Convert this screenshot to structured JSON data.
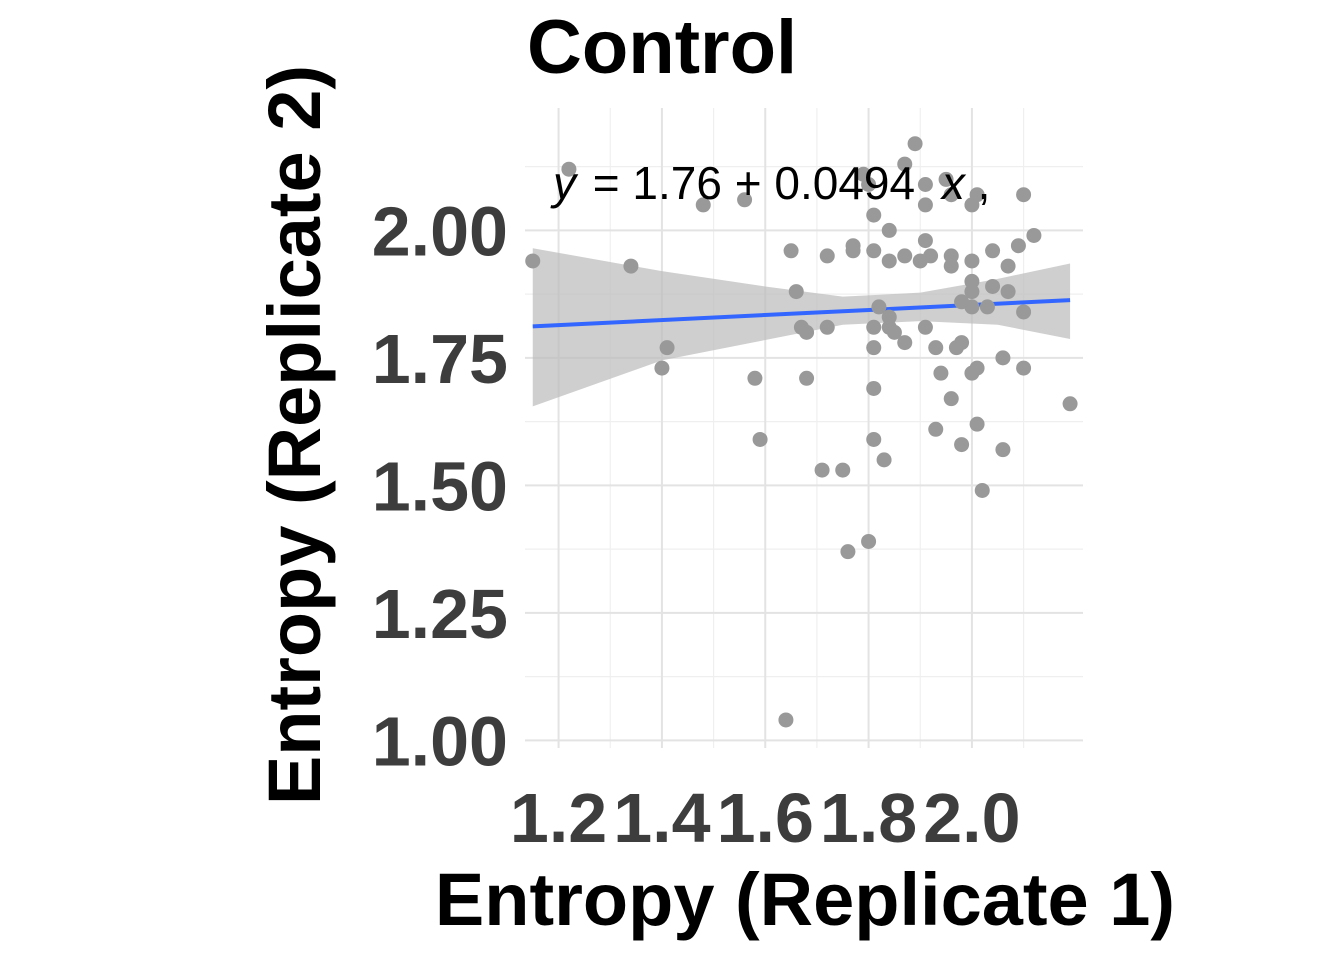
{
  "chart_data": {
    "type": "scatter",
    "title": "Control",
    "xlabel": "Entropy (Replicate 1)",
    "ylabel": "Entropy (Replicate 2)",
    "xlim": [
      1.135,
      2.215
    ],
    "ylim": [
      0.985,
      2.24
    ],
    "x_ticks": [
      "1.2",
      "1.4",
      "1.6",
      "1.8",
      "2.0"
    ],
    "y_ticks": [
      "1.00",
      "1.25",
      "1.50",
      "1.75",
      "2.00"
    ],
    "grid": true,
    "equation": {
      "y": "y",
      "rest": "= 1.76 + 0.0494",
      "x": "x",
      "tail": ","
    },
    "fit": {
      "intercept": 1.755,
      "slope": 0.0494,
      "x_range": [
        1.15,
        2.19
      ],
      "band": [
        {
          "x": 1.15,
          "lo": 1.655,
          "hi": 1.965
        },
        {
          "x": 1.4,
          "lo": 1.745,
          "hi": 1.92
        },
        {
          "x": 1.6,
          "lo": 1.785,
          "hi": 1.89
        },
        {
          "x": 1.75,
          "lo": 1.815,
          "hi": 1.87
        },
        {
          "x": 1.9,
          "lo": 1.822,
          "hi": 1.878
        },
        {
          "x": 2.05,
          "lo": 1.815,
          "hi": 1.905
        },
        {
          "x": 2.19,
          "lo": 1.787,
          "hi": 1.935
        }
      ],
      "line_color": "#3366ff",
      "band_color": "#bdbdbd"
    },
    "point_color": "#999999",
    "points": [
      {
        "x": 1.15,
        "y": 1.94
      },
      {
        "x": 1.22,
        "y": 2.12
      },
      {
        "x": 1.34,
        "y": 1.93
      },
      {
        "x": 1.41,
        "y": 1.77
      },
      {
        "x": 1.4,
        "y": 1.73
      },
      {
        "x": 1.48,
        "y": 2.05
      },
      {
        "x": 1.56,
        "y": 2.06
      },
      {
        "x": 1.58,
        "y": 1.71
      },
      {
        "x": 1.59,
        "y": 1.59
      },
      {
        "x": 1.64,
        "y": 1.04
      },
      {
        "x": 1.65,
        "y": 1.96
      },
      {
        "x": 1.66,
        "y": 1.88
      },
      {
        "x": 1.67,
        "y": 1.81
      },
      {
        "x": 1.68,
        "y": 1.8
      },
      {
        "x": 1.68,
        "y": 1.71
      },
      {
        "x": 1.71,
        "y": 1.53
      },
      {
        "x": 1.72,
        "y": 1.81
      },
      {
        "x": 1.72,
        "y": 1.95
      },
      {
        "x": 1.75,
        "y": 1.53
      },
      {
        "x": 1.76,
        "y": 1.37
      },
      {
        "x": 1.77,
        "y": 1.97
      },
      {
        "x": 1.77,
        "y": 1.96
      },
      {
        "x": 1.79,
        "y": 2.11
      },
      {
        "x": 1.8,
        "y": 2.09
      },
      {
        "x": 1.8,
        "y": 1.39
      },
      {
        "x": 1.81,
        "y": 2.03
      },
      {
        "x": 1.81,
        "y": 1.96
      },
      {
        "x": 1.81,
        "y": 1.81
      },
      {
        "x": 1.81,
        "y": 1.77
      },
      {
        "x": 1.81,
        "y": 1.69
      },
      {
        "x": 1.81,
        "y": 1.59
      },
      {
        "x": 1.82,
        "y": 1.85
      },
      {
        "x": 1.83,
        "y": 1.55
      },
      {
        "x": 1.84,
        "y": 2.0
      },
      {
        "x": 1.84,
        "y": 1.94
      },
      {
        "x": 1.84,
        "y": 1.81
      },
      {
        "x": 1.84,
        "y": 1.83
      },
      {
        "x": 1.85,
        "y": 1.8
      },
      {
        "x": 1.87,
        "y": 2.13
      },
      {
        "x": 1.87,
        "y": 1.95
      },
      {
        "x": 1.87,
        "y": 1.78
      },
      {
        "x": 1.89,
        "y": 2.17
      },
      {
        "x": 1.91,
        "y": 2.05
      },
      {
        "x": 1.91,
        "y": 1.98
      },
      {
        "x": 1.91,
        "y": 1.81
      },
      {
        "x": 1.91,
        "y": 2.09
      },
      {
        "x": 1.9,
        "y": 1.94
      },
      {
        "x": 1.92,
        "y": 1.95
      },
      {
        "x": 1.93,
        "y": 1.61
      },
      {
        "x": 1.93,
        "y": 1.77
      },
      {
        "x": 1.94,
        "y": 1.72
      },
      {
        "x": 1.95,
        "y": 2.1
      },
      {
        "x": 1.96,
        "y": 2.07
      },
      {
        "x": 1.96,
        "y": 1.95
      },
      {
        "x": 1.96,
        "y": 1.93
      },
      {
        "x": 1.96,
        "y": 1.67
      },
      {
        "x": 1.97,
        "y": 1.77
      },
      {
        "x": 1.98,
        "y": 1.86
      },
      {
        "x": 1.98,
        "y": 1.78
      },
      {
        "x": 1.98,
        "y": 1.58
      },
      {
        "x": 2.0,
        "y": 2.05
      },
      {
        "x": 2.0,
        "y": 1.94
      },
      {
        "x": 2.0,
        "y": 1.9
      },
      {
        "x": 2.0,
        "y": 1.88
      },
      {
        "x": 2.0,
        "y": 1.85
      },
      {
        "x": 2.0,
        "y": 1.72
      },
      {
        "x": 2.01,
        "y": 2.07
      },
      {
        "x": 2.01,
        "y": 1.62
      },
      {
        "x": 2.01,
        "y": 1.73
      },
      {
        "x": 2.02,
        "y": 1.49
      },
      {
        "x": 2.03,
        "y": 1.85
      },
      {
        "x": 2.04,
        "y": 1.96
      },
      {
        "x": 2.04,
        "y": 1.89
      },
      {
        "x": 2.06,
        "y": 1.75
      },
      {
        "x": 2.06,
        "y": 1.57
      },
      {
        "x": 2.07,
        "y": 1.93
      },
      {
        "x": 2.07,
        "y": 1.88
      },
      {
        "x": 2.09,
        "y": 1.97
      },
      {
        "x": 2.1,
        "y": 2.07
      },
      {
        "x": 2.1,
        "y": 1.84
      },
      {
        "x": 2.1,
        "y": 1.73
      },
      {
        "x": 2.12,
        "y": 1.99
      },
      {
        "x": 2.19,
        "y": 1.66
      }
    ]
  }
}
